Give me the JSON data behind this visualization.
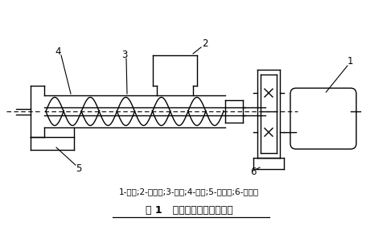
{
  "title": "图 1   螺旋送料机工作原理图",
  "legend_text": "1-电机;2-进料口;3-料筒;4-螺旋;5-卸料口;6-减速器",
  "bg_color": "#ffffff",
  "line_color": "#000000"
}
